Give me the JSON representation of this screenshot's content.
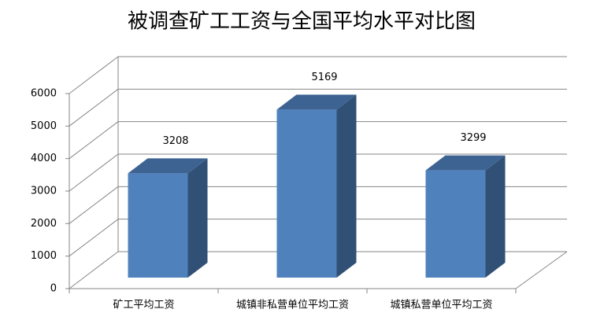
{
  "chart_data": {
    "type": "bar3d",
    "title": "被调查矿工工资与全国平均水平对比图",
    "categories": [
      "矿工平均工资",
      "城镇非私营单位平均工资",
      "城镇私营单位平均工资"
    ],
    "values": [
      3208,
      5169,
      3299
    ],
    "color": "#4f81bd",
    "ylim": [
      0,
      6000
    ],
    "yticks": [
      0,
      1000,
      2000,
      3000,
      4000,
      5000,
      6000
    ],
    "grid": true
  }
}
